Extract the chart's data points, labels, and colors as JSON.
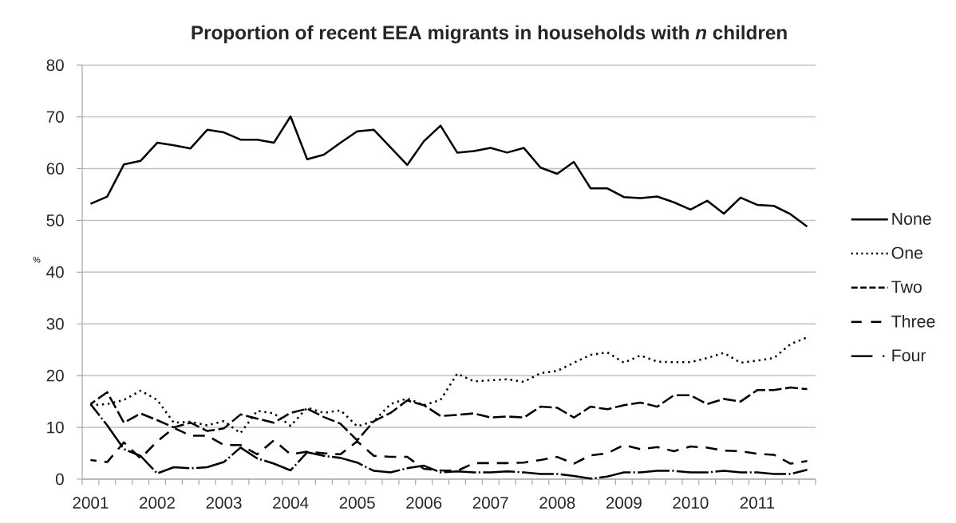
{
  "chart_data": {
    "type": "line",
    "title": "Proportion of recent EEA migrants in households with *n* children",
    "ylabel": "%",
    "categories": [
      "2001",
      null,
      null,
      null,
      "2002",
      null,
      null,
      null,
      "2003",
      null,
      null,
      null,
      "2004",
      null,
      null,
      null,
      "2005",
      null,
      null,
      null,
      "2006",
      null,
      null,
      null,
      "2007",
      null,
      null,
      null,
      "2008",
      null,
      null,
      null,
      "2009",
      null,
      null,
      null,
      "2010",
      null,
      null,
      null,
      "2011",
      null,
      null,
      null
    ],
    "series": [
      {
        "name": "None",
        "color": "#000000",
        "line_style": "solid",
        "values": [
          53.2,
          54.6,
          60.8,
          61.5,
          65.0,
          64.5,
          63.9,
          67.5,
          67.0,
          65.6,
          65.6,
          65.0,
          70.1,
          61.8,
          62.7,
          65.0,
          67.2,
          67.5,
          64.1,
          60.7,
          65.3,
          68.3,
          63.1,
          63.4,
          64.0,
          63.1,
          64.0,
          60.2,
          59.0,
          61.3,
          56.2,
          56.2,
          54.5,
          54.3,
          54.6,
          53.5,
          52.1,
          53.8,
          51.3,
          54.4,
          53.0,
          52.8,
          51.2,
          48.8
        ]
      },
      {
        "name": "One",
        "color": "#000000",
        "line_style": "dotted",
        "values": [
          14.3,
          14.5,
          15.3,
          17.1,
          15.3,
          10.9,
          11.1,
          10.4,
          11.2,
          8.9,
          13.2,
          12.7,
          10.3,
          13.8,
          12.8,
          13.3,
          10.2,
          11.2,
          14.5,
          15.6,
          14.3,
          15.3,
          20.4,
          18.9,
          19.1,
          19.3,
          18.8,
          20.5,
          20.9,
          22.5,
          24.0,
          24.5,
          22.5,
          23.9,
          22.7,
          22.6,
          22.6,
          23.4,
          24.4,
          22.5,
          22.9,
          23.4,
          26.1,
          27.4
        ]
      },
      {
        "name": "Two",
        "color": "#000000",
        "line_style": "dashed",
        "values": [
          14.5,
          16.8,
          10.9,
          12.7,
          11.4,
          10.0,
          10.9,
          9.3,
          9.8,
          12.5,
          11.7,
          10.9,
          12.8,
          13.6,
          12.0,
          10.7,
          7.5,
          11.2,
          12.8,
          15.2,
          14.3,
          12.2,
          12.4,
          12.7,
          11.9,
          12.1,
          11.9,
          14.0,
          13.8,
          11.9,
          14.0,
          13.5,
          14.3,
          14.8,
          14.0,
          16.2,
          16.2,
          14.5,
          15.5,
          15.0,
          17.2,
          17.2,
          17.7,
          17.4
        ]
      },
      {
        "name": "Three",
        "color": "#000000",
        "line_style": "long dashed",
        "values": [
          3.7,
          3.3,
          7.1,
          4.0,
          7.3,
          9.9,
          8.4,
          8.4,
          6.6,
          6.6,
          4.8,
          7.5,
          4.8,
          5.3,
          5.0,
          4.8,
          7.3,
          4.5,
          4.3,
          4.3,
          2.0,
          1.7,
          1.6,
          3.1,
          3.1,
          3.1,
          3.2,
          3.7,
          4.3,
          3.0,
          4.6,
          5.0,
          6.6,
          5.8,
          6.2,
          5.4,
          6.3,
          6.1,
          5.5,
          5.4,
          4.9,
          4.7,
          3.0,
          3.5
        ]
      },
      {
        "name": "Four",
        "color": "#000000",
        "line_style": "long dash dot",
        "values": [
          14.5,
          10.4,
          5.8,
          4.5,
          1.1,
          2.3,
          2.1,
          2.3,
          3.3,
          6.1,
          4.0,
          3.0,
          1.7,
          5.2,
          4.5,
          4.1,
          3.2,
          1.6,
          1.3,
          2.1,
          2.6,
          1.3,
          1.5,
          1.3,
          1.3,
          1.5,
          1.3,
          1.0,
          1.0,
          0.6,
          0.1,
          0.5,
          1.3,
          1.3,
          1.6,
          1.6,
          1.3,
          1.3,
          1.6,
          1.3,
          1.3,
          1.0,
          1.0,
          1.8
        ]
      }
    ],
    "ylim": [
      0,
      80
    ],
    "yticks": [
      0,
      10,
      20,
      30,
      40,
      50,
      60,
      70,
      80
    ],
    "grid": "y",
    "legend": "right"
  }
}
